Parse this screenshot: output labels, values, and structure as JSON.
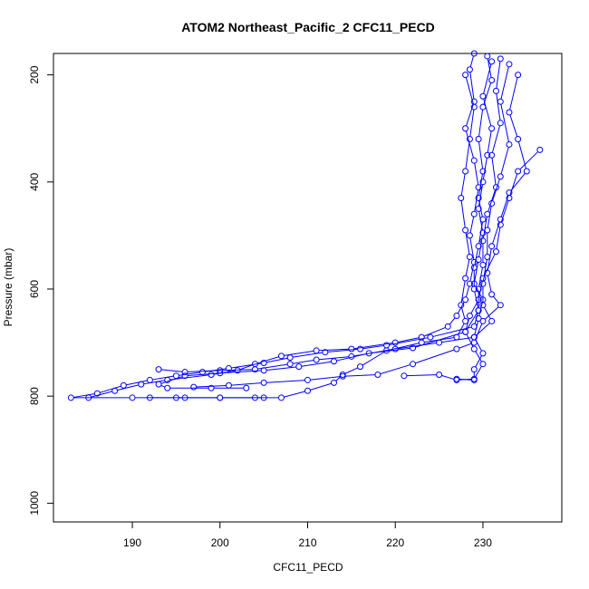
{
  "chart_data": {
    "type": "line",
    "title": "ATOM2 Northeast_Pacific_2 CFC11_PECD",
    "xlabel": "CFC11_PECD",
    "ylabel": "Pressure (mbar)",
    "xlim": [
      181,
      239
    ],
    "ylim": [
      1035,
      160
    ],
    "y_inverted": true,
    "x_ticks": [
      190,
      200,
      210,
      220,
      230
    ],
    "y_ticks": [
      200,
      400,
      600,
      800,
      1000
    ],
    "marker": "open-circle",
    "series_color": "#0000ff",
    "grid": false,
    "legend": "none",
    "series": [
      {
        "points": [
          [
            230.5,
            165
          ],
          [
            231,
            210
          ],
          [
            230,
            260
          ],
          [
            229.5,
            320
          ],
          [
            230,
            380
          ],
          [
            229.5,
            430
          ],
          [
            230,
            470
          ],
          [
            229.5,
            520
          ],
          [
            229,
            560
          ],
          [
            229,
            600
          ],
          [
            229.5,
            640
          ],
          [
            229,
            670
          ],
          [
            224,
            690
          ],
          [
            219,
            705
          ],
          [
            216,
            712
          ],
          [
            212,
            718
          ],
          [
            208,
            728
          ],
          [
            205,
            738
          ],
          [
            201,
            748
          ],
          [
            198,
            755
          ],
          [
            195,
            762
          ],
          [
            192,
            770
          ],
          [
            189,
            780
          ],
          [
            186,
            795
          ],
          [
            183,
            803
          ],
          [
            190,
            803
          ],
          [
            195,
            803
          ],
          [
            200,
            803
          ],
          [
            205,
            803
          ]
        ]
      },
      {
        "points": [
          [
            232,
            170
          ],
          [
            231.5,
            230
          ],
          [
            232,
            290
          ],
          [
            231,
            350
          ],
          [
            231.5,
            410
          ],
          [
            230.5,
            460
          ],
          [
            230,
            510
          ],
          [
            230,
            555
          ],
          [
            229.5,
            600
          ],
          [
            229.5,
            640
          ],
          [
            228,
            680
          ],
          [
            222,
            710
          ],
          [
            217,
            720
          ],
          [
            213,
            735
          ],
          [
            209,
            745
          ],
          [
            205,
            752
          ],
          [
            200,
            757
          ],
          [
            196,
            762
          ],
          [
            193,
            778
          ],
          [
            194,
            785
          ],
          [
            199,
            785
          ],
          [
            203,
            785
          ]
        ]
      },
      {
        "points": [
          [
            233,
            180
          ],
          [
            232,
            250
          ],
          [
            233,
            330
          ],
          [
            232,
            390
          ],
          [
            231,
            440
          ],
          [
            230.5,
            490
          ],
          [
            230.5,
            540
          ],
          [
            230,
            590
          ],
          [
            230,
            630
          ],
          [
            231,
            660
          ],
          [
            229,
            690
          ],
          [
            225,
            700
          ],
          [
            220,
            712
          ],
          [
            215,
            726
          ],
          [
            211,
            732
          ],
          [
            208,
            740
          ],
          [
            204,
            750
          ],
          [
            200,
            752
          ],
          [
            196,
            755
          ],
          [
            193,
            750
          ]
        ]
      },
      {
        "points": [
          [
            228,
            200
          ],
          [
            229,
            260
          ],
          [
            228.5,
            320
          ],
          [
            228,
            380
          ],
          [
            227.5,
            430
          ],
          [
            228,
            490
          ],
          [
            228.5,
            540
          ],
          [
            228,
            580
          ],
          [
            227.5,
            630
          ],
          [
            228,
            660
          ],
          [
            227,
            690
          ],
          [
            223,
            700
          ],
          [
            219,
            715
          ],
          [
            216,
            745
          ],
          [
            214,
            760
          ],
          [
            213,
            775
          ],
          [
            210,
            790
          ],
          [
            207,
            803
          ],
          [
            204,
            803
          ],
          [
            200,
            803
          ],
          [
            196,
            803
          ],
          [
            192,
            803
          ]
        ]
      },
      {
        "points": [
          [
            234,
            200
          ],
          [
            233,
            270
          ],
          [
            234,
            320
          ],
          [
            235,
            380
          ],
          [
            233,
            420
          ],
          [
            232,
            470
          ],
          [
            231,
            520
          ],
          [
            230.5,
            570
          ],
          [
            231,
            610
          ],
          [
            232,
            630
          ],
          [
            230,
            660
          ],
          [
            229,
            700
          ],
          [
            227,
            712
          ],
          [
            222,
            740
          ],
          [
            218,
            760
          ],
          [
            214,
            763
          ],
          [
            210,
            770
          ],
          [
            205,
            775
          ],
          [
            201,
            780
          ],
          [
            197,
            783
          ]
        ]
      },
      {
        "points": [
          [
            236.5,
            340
          ],
          [
            234,
            380
          ],
          [
            233,
            430
          ],
          [
            232,
            480
          ],
          [
            231.5,
            530
          ],
          [
            230,
            580
          ],
          [
            229.5,
            620
          ],
          [
            228.5,
            650
          ],
          [
            228,
            680
          ],
          [
            229,
            712
          ],
          [
            230,
            740
          ],
          [
            229,
            768
          ],
          [
            227,
            770
          ],
          [
            225,
            760
          ],
          [
            221,
            762
          ]
        ]
      },
      {
        "points": [
          [
            229,
            160
          ],
          [
            228.5,
            190
          ],
          [
            229,
            250
          ],
          [
            228,
            300
          ],
          [
            229,
            360
          ],
          [
            229.5,
            410
          ],
          [
            229,
            460
          ],
          [
            228.5,
            500
          ],
          [
            229,
            550
          ],
          [
            228.5,
            590
          ],
          [
            228,
            620
          ],
          [
            227,
            650
          ],
          [
            226,
            670
          ],
          [
            223,
            690
          ],
          [
            220,
            700
          ],
          [
            215,
            712
          ],
          [
            211,
            715
          ],
          [
            207,
            725
          ],
          [
            204,
            740
          ],
          [
            202,
            752
          ],
          [
            199,
            760
          ],
          [
            194,
            770
          ],
          [
            191,
            778
          ],
          [
            188,
            790
          ],
          [
            185,
            803
          ]
        ]
      },
      {
        "points": [
          [
            231,
            175
          ],
          [
            230,
            240
          ],
          [
            231,
            300
          ],
          [
            230.5,
            350
          ],
          [
            230,
            400
          ],
          [
            229.5,
            450
          ],
          [
            230,
            495
          ],
          [
            229.5,
            545
          ],
          [
            229,
            590
          ],
          [
            230,
            620
          ],
          [
            229.5,
            655
          ],
          [
            229,
            690
          ],
          [
            230,
            720
          ],
          [
            229,
            750
          ],
          [
            229,
            770
          ],
          [
            227,
            768
          ]
        ]
      }
    ]
  }
}
